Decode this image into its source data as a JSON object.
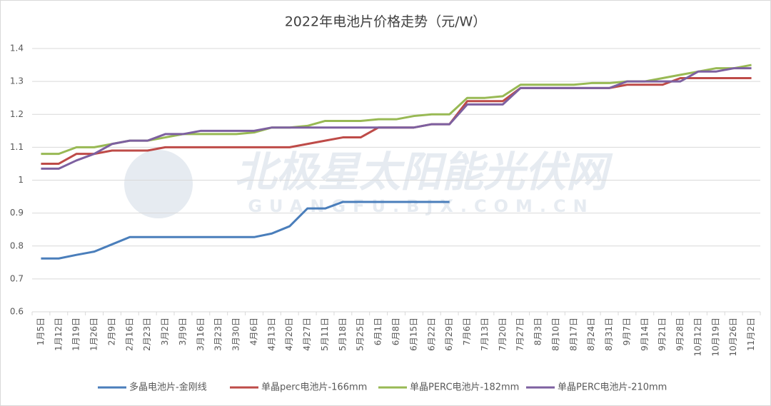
{
  "chart_data": {
    "type": "line",
    "title": "2022年电池片价格走势（元/W）",
    "watermark": [
      "北极星太阳能光伏网",
      "GUANGFU.BJX.COM.CN"
    ],
    "categories": [
      "1月5日",
      "1月12日",
      "1月19日",
      "1月26日",
      "2月9日",
      "2月16日",
      "2月23日",
      "3月2日",
      "3月9日",
      "3月16日",
      "3月23日",
      "3月30日",
      "4月6日",
      "4月13日",
      "4月20日",
      "4月27日",
      "5月11日",
      "5月18日",
      "5月25日",
      "6月1日",
      "6月8日",
      "6月15日",
      "6月22日",
      "6月29日",
      "7月6日",
      "7月13日",
      "7月20日",
      "7月27日",
      "8月3日",
      "8月10日",
      "8月17日",
      "8月24日",
      "8月31日",
      "9月7日",
      "9月14日",
      "9月21日",
      "9月28日",
      "10月12日",
      "10月19日",
      "10月26日",
      "11月2日"
    ],
    "series": [
      {
        "name": "多晶电池片-金刚线",
        "color": "#4a7ebb",
        "values": [
          0.762,
          0.762,
          0.773,
          0.783,
          0.805,
          0.827,
          0.827,
          0.827,
          0.827,
          0.827,
          0.827,
          0.827,
          0.827,
          0.838,
          0.86,
          0.914,
          0.914,
          0.934,
          0.934,
          0.934,
          0.934,
          0.934,
          0.934,
          0.934,
          null,
          null,
          null,
          null,
          null,
          null,
          null,
          null,
          null,
          null,
          null,
          null,
          null,
          null,
          null,
          null,
          null
        ]
      },
      {
        "name": "单晶perc电池片-166mm",
        "color": "#be4b48",
        "values": [
          1.05,
          1.05,
          1.08,
          1.08,
          1.09,
          1.09,
          1.09,
          1.1,
          1.1,
          1.1,
          1.1,
          1.1,
          1.1,
          1.1,
          1.1,
          1.11,
          1.12,
          1.13,
          1.13,
          1.16,
          1.16,
          1.16,
          1.17,
          1.17,
          1.24,
          1.24,
          1.24,
          1.28,
          1.28,
          1.28,
          1.28,
          1.28,
          1.28,
          1.29,
          1.29,
          1.29,
          1.31,
          1.31,
          1.31,
          1.31,
          1.31
        ]
      },
      {
        "name": "单晶PERC电池片-182mm",
        "color": "#98b954",
        "values": [
          1.08,
          1.08,
          1.1,
          1.1,
          1.11,
          1.12,
          1.12,
          1.13,
          1.14,
          1.14,
          1.14,
          1.14,
          1.145,
          1.16,
          1.16,
          1.165,
          1.18,
          1.18,
          1.18,
          1.185,
          1.185,
          1.195,
          1.2,
          1.2,
          1.25,
          1.25,
          1.255,
          1.29,
          1.29,
          1.29,
          1.29,
          1.295,
          1.295,
          1.3,
          1.3,
          1.31,
          1.32,
          1.33,
          1.34,
          1.34,
          1.35
        ]
      },
      {
        "name": "单晶PERC电池片-210mm",
        "color": "#7d60a0",
        "values": [
          1.035,
          1.035,
          1.06,
          1.08,
          1.11,
          1.12,
          1.12,
          1.14,
          1.14,
          1.15,
          1.15,
          1.15,
          1.15,
          1.16,
          1.16,
          1.16,
          1.16,
          1.16,
          1.16,
          1.16,
          1.16,
          1.16,
          1.17,
          1.17,
          1.23,
          1.23,
          1.23,
          1.28,
          1.28,
          1.28,
          1.28,
          1.28,
          1.28,
          1.3,
          1.3,
          1.3,
          1.3,
          1.33,
          1.33,
          1.34,
          1.34
        ]
      }
    ],
    "ylim": [
      0.6,
      1.4
    ],
    "yticks": [
      0.6,
      0.7,
      0.8,
      0.9,
      1,
      1.1,
      1.2,
      1.3,
      1.4
    ],
    "grid": true,
    "legend": "bottom"
  }
}
